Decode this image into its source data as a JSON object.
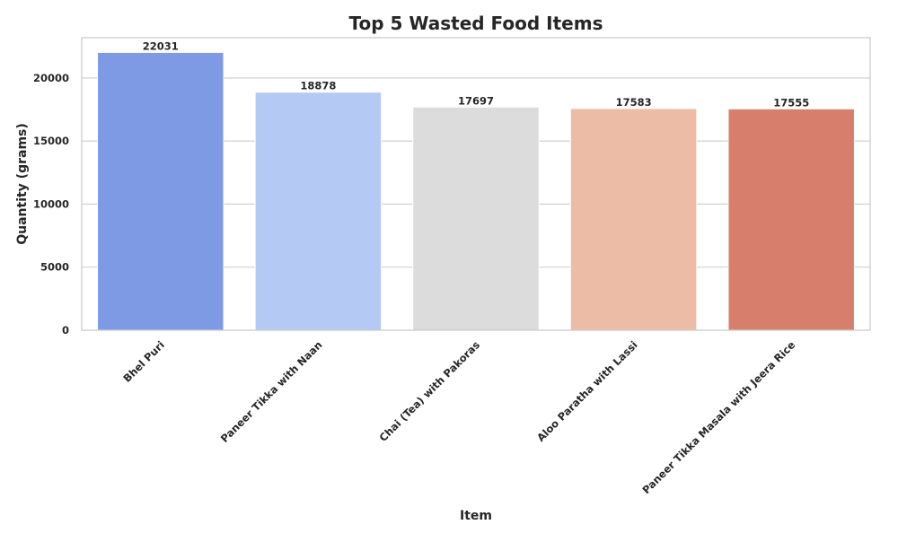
{
  "chart_data": {
    "type": "bar",
    "title": "Top 5 Wasted Food Items",
    "xlabel": "Item",
    "ylabel": "Quantity (grams)",
    "categories": [
      "Bhel Puri",
      "Paneer Tikka with Naan",
      "Chai (Tea) with Pakoras",
      "Aloo Paratha with Lassi",
      "Paneer Tikka Masala with Jeera Rice"
    ],
    "values": [
      22031,
      18878,
      17697,
      17583,
      17555
    ],
    "data_labels": [
      "22031",
      "18878",
      "17697",
      "17583",
      "17555"
    ],
    "ylim": [
      0,
      23200
    ],
    "yticks": [
      0,
      5000,
      10000,
      15000,
      20000
    ],
    "ytick_labels": [
      "0",
      "5000",
      "10000",
      "15000",
      "20000"
    ],
    "colors": [
      "#7f9ae5",
      "#b4c9f3",
      "#dcdcdc",
      "#ecbca6",
      "#d77f6c"
    ],
    "grid": "horizontal",
    "legend": "none",
    "x_tick_rotation_deg": 45
  }
}
